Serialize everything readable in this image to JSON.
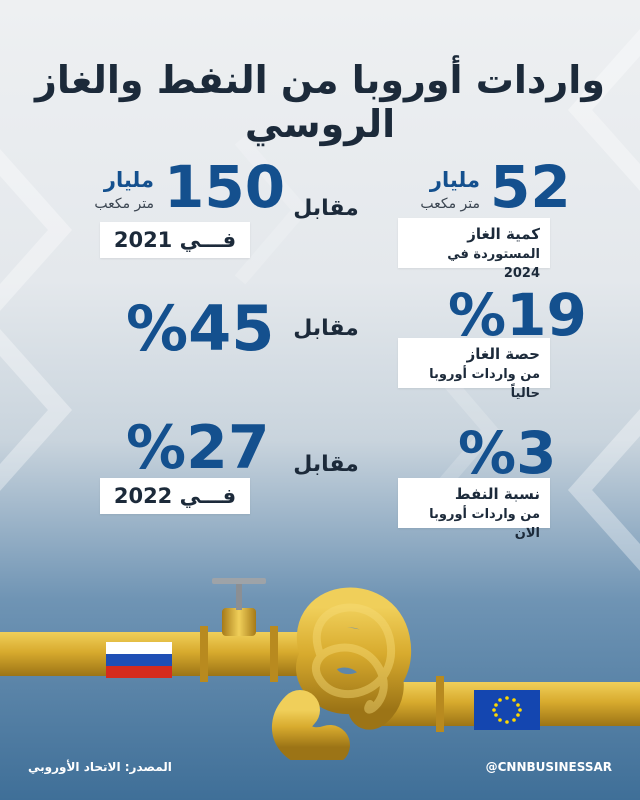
{
  "title": "واردات أوروبا من النفط والغاز الروسي",
  "comparison_word": "مقابل",
  "rows": [
    {
      "right": {
        "value": "52",
        "unit": "مليار",
        "subunit": "متر مكعب",
        "label_lines": [
          "كمية الغاز",
          "المستوردة في 2024"
        ]
      },
      "left": {
        "value": "150",
        "unit": "مليار",
        "subunit": "متر مكعب",
        "year_label": "فـــي 2021"
      }
    },
    {
      "right": {
        "value": "19",
        "percent": "%",
        "label_lines": [
          "حصة الغاز",
          "من واردات أوروبا حالياً"
        ]
      },
      "left": {
        "value": "45",
        "percent": "%"
      }
    },
    {
      "right": {
        "value": "3",
        "percent": "%",
        "label_lines": [
          "نسبة النفط",
          "من واردات أوروبا الان"
        ]
      },
      "left": {
        "value": "27",
        "percent": "%",
        "year_label": "فـــي 2022"
      }
    }
  ],
  "footer": {
    "source": "المصدر: الاتحاد الأوروبي",
    "handle": "@CNNBUSINESSAR"
  },
  "colors": {
    "accent": "#14508e",
    "pipe": "#d4a62a",
    "background_top": "#eef0f2",
    "background_bottom": "#3f6f98"
  },
  "icons": [
    "russia-flag-icon",
    "eu-flag-icon",
    "knotted-pipeline-icon"
  ]
}
